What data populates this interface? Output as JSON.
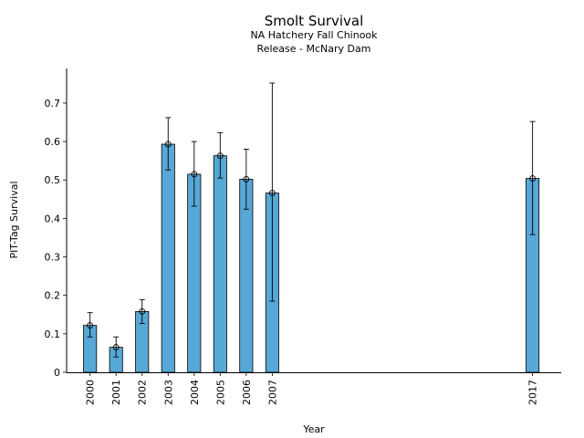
{
  "chart_data": {
    "type": "bar",
    "title": "Smolt Survival",
    "subtitle_lines": [
      "NA Hatchery Fall Chinook",
      "Release - McNary Dam"
    ],
    "xlabel": "Year",
    "ylabel": "PIT-Tag Survival",
    "ylim": [
      0,
      0.79
    ],
    "xlim": [
      1999.1,
      2018.1
    ],
    "yticks": [
      0,
      0.1,
      0.2,
      0.3,
      0.4,
      0.5,
      0.6,
      0.7
    ],
    "ytick_labels": [
      "0",
      "0.1",
      "0.2",
      "0.3",
      "0.4",
      "0.5",
      "0.6",
      "0.7"
    ],
    "bar_color": "#56a8d6",
    "bar_width": 0.5,
    "grid": false,
    "points": [
      {
        "year": "2000",
        "x": 2000,
        "value": 0.122,
        "lower": 0.092,
        "upper": 0.155
      },
      {
        "year": "2001",
        "x": 2001,
        "value": 0.065,
        "lower": 0.04,
        "upper": 0.092
      },
      {
        "year": "2002",
        "x": 2002,
        "value": 0.158,
        "lower": 0.127,
        "upper": 0.189
      },
      {
        "year": "2003",
        "x": 2003,
        "value": 0.593,
        "lower": 0.526,
        "upper": 0.662
      },
      {
        "year": "2004",
        "x": 2004,
        "value": 0.515,
        "lower": 0.432,
        "upper": 0.6
      },
      {
        "year": "2005",
        "x": 2005,
        "value": 0.563,
        "lower": 0.505,
        "upper": 0.623
      },
      {
        "year": "2006",
        "x": 2006,
        "value": 0.502,
        "lower": 0.424,
        "upper": 0.58
      },
      {
        "year": "2007",
        "x": 2007,
        "value": 0.466,
        "lower": 0.185,
        "upper": 0.752
      },
      {
        "year": "2017",
        "x": 2017,
        "value": 0.504,
        "lower": 0.358,
        "upper": 0.652
      }
    ]
  }
}
